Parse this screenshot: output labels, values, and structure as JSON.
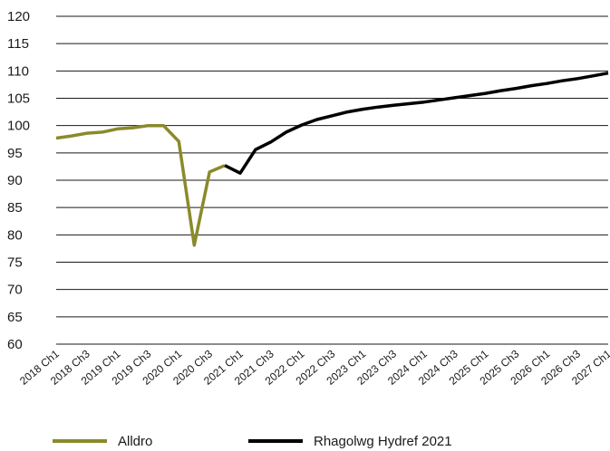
{
  "chart_data": {
    "type": "line",
    "title": "",
    "xlabel": "",
    "ylabel": "",
    "ylim": [
      60,
      120
    ],
    "yticks": [
      60,
      65,
      70,
      75,
      80,
      85,
      90,
      95,
      100,
      105,
      110,
      115,
      120
    ],
    "grid": "horizontal",
    "legend_position": "bottom",
    "categories": [
      "2018 Ch1",
      "2018 Ch2",
      "2018 Ch3",
      "2018 Ch4",
      "2019 Ch1",
      "2019 Ch2",
      "2019 Ch3",
      "2019 Ch4",
      "2020 Ch1",
      "2020 Ch2",
      "2020 Ch3",
      "2020 Ch4",
      "2021 Ch1",
      "2021 Ch2",
      "2021 Ch3",
      "2021 Ch4",
      "2022 Ch1",
      "2022 Ch2",
      "2022 Ch3",
      "2022 Ch4",
      "2023 Ch1",
      "2023 Ch2",
      "2023 Ch3",
      "2023 Ch4",
      "2024 Ch1",
      "2024 Ch2",
      "2024 Ch3",
      "2024 Ch4",
      "2025 Ch1",
      "2025 Ch2",
      "2025 Ch3",
      "2025 Ch4",
      "2026 Ch1",
      "2026 Ch2",
      "2026 Ch3",
      "2026 Ch4",
      "2027 Ch1"
    ],
    "xtick_labels": [
      "2018 Ch1",
      "2018 Ch3",
      "2019 Ch1",
      "2019 Ch3",
      "2020 Ch1",
      "2020 Ch3",
      "2021 Ch1",
      "2021 Ch3",
      "2022 Ch1",
      "2022 Ch3",
      "2023 Ch1",
      "2023 Ch3",
      "2024 Ch1",
      "2024 Ch3",
      "2025 Ch1",
      "2025 Ch3",
      "2026 Ch1",
      "2026 Ch3",
      "2027 Ch1"
    ],
    "series": [
      {
        "name": "Alldro",
        "color": "#8a8a2a",
        "values": [
          97.7,
          98.1,
          98.6,
          98.8,
          99.4,
          99.6,
          100.0,
          100.0,
          97.1,
          78.1,
          91.5,
          92.7,
          null,
          null,
          null,
          null,
          null,
          null,
          null,
          null,
          null,
          null,
          null,
          null,
          null,
          null,
          null,
          null,
          null,
          null,
          null,
          null,
          null,
          null,
          null,
          null,
          null
        ]
      },
      {
        "name": "Rhagolwg Hydref 2021",
        "color": "#000000",
        "values": [
          null,
          null,
          null,
          null,
          null,
          null,
          null,
          null,
          null,
          null,
          null,
          92.7,
          91.3,
          95.6,
          97.0,
          98.8,
          100.1,
          101.1,
          101.8,
          102.5,
          103.0,
          103.4,
          103.7,
          104.0,
          104.3,
          104.7,
          105.1,
          105.5,
          105.9,
          106.4,
          106.8,
          107.3,
          107.7,
          108.2,
          108.6,
          109.1,
          109.6
        ]
      }
    ]
  }
}
